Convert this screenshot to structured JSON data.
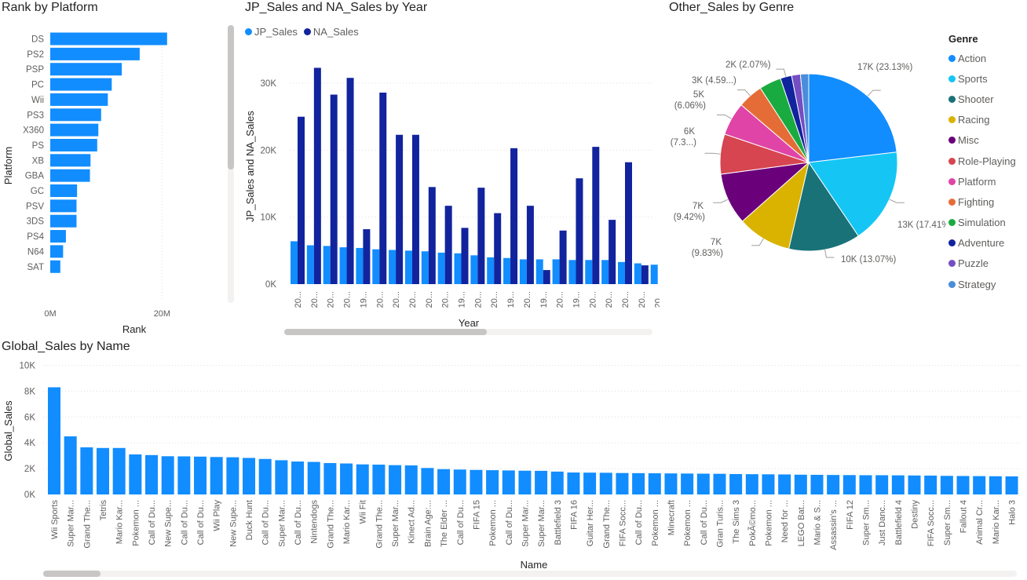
{
  "chart_data": [
    {
      "id": "platform",
      "type": "bar",
      "orientation": "horizontal",
      "title": "Rank by Platform",
      "xlabel": "Rank",
      "ylabel": "Platform",
      "xlim": [
        0,
        25000000
      ],
      "xticks": [
        {
          "v": 0,
          "label": "0M"
        },
        {
          "v": 20000000,
          "label": "20M"
        }
      ],
      "categories": [
        "DS",
        "PS2",
        "PSP",
        "PC",
        "Wii",
        "PS3",
        "X360",
        "PS",
        "XB",
        "GBA",
        "GC",
        "PSV",
        "3DS",
        "PS4",
        "N64",
        "SAT"
      ],
      "values": [
        20900000,
        16000000,
        12800000,
        11000000,
        10300000,
        9100000,
        8600000,
        8400000,
        7200000,
        7100000,
        4800000,
        4700000,
        4700000,
        2800000,
        2300000,
        1800000
      ],
      "color": "#118dff"
    },
    {
      "id": "sales_year",
      "type": "bar",
      "title": "JP_Sales and NA_Sales by Year",
      "xlabel": "Year",
      "ylabel": "JP_Sales and NA_Sales",
      "ylim": [
        0,
        35000
      ],
      "yticks": [
        {
          "v": 0,
          "label": "0K"
        },
        {
          "v": 10000,
          "label": "10K"
        },
        {
          "v": 20000,
          "label": "20K"
        },
        {
          "v": 30000,
          "label": "30K"
        }
      ],
      "categories": [
        "20...",
        "20...",
        "20...",
        "20...",
        "19...",
        "20...",
        "20...",
        "20...",
        "20...",
        "20...",
        "19...",
        "20...",
        "20...",
        "19...",
        "20...",
        "19...",
        "20...",
        "19...",
        "20...",
        "20...",
        "20...",
        "20...",
        "20...",
        "19..."
      ],
      "series": [
        {
          "name": "JP_Sales",
          "color": "#118dff",
          "values": [
            6400,
            5800,
            5700,
            5500,
            5400,
            5200,
            5100,
            5000,
            4900,
            4700,
            4600,
            4300,
            4000,
            3900,
            3700,
            3700,
            3700,
            3600,
            3600,
            3600,
            3300,
            3100,
            2900,
            2900
          ]
        },
        {
          "name": "NA_Sales",
          "color": "#12239e",
          "values": [
            25000,
            32300,
            28300,
            30800,
            8200,
            28600,
            22300,
            22300,
            14500,
            11700,
            8400,
            14400,
            10600,
            20300,
            11700,
            2100,
            8000,
            15800,
            20500,
            9600,
            18200,
            2800,
            0,
            0
          ]
        }
      ]
    },
    {
      "id": "genre",
      "type": "pie",
      "title": "Other_Sales by Genre",
      "legend_title": "Genre",
      "legend_position": "right",
      "slices": [
        {
          "name": "Action",
          "value": 23.13,
          "color": "#118dff",
          "label": "17K (23.13%)"
        },
        {
          "name": "Sports",
          "value": 17.41,
          "color": "#15c6f4",
          "label": "13K (17.41%)"
        },
        {
          "name": "Shooter",
          "value": 13.07,
          "color": "#197278",
          "label": "10K (13.07%)"
        },
        {
          "name": "Racing",
          "value": 9.83,
          "color": "#d9b300",
          "label": "7K (9.83%)"
        },
        {
          "name": "Misc",
          "value": 9.42,
          "color": "#6b007b",
          "label": "7K (9.42%)"
        },
        {
          "name": "Role-Playing",
          "value": 7.3,
          "color": "#d64550",
          "label": "6K (7.3...)"
        },
        {
          "name": "Platform",
          "value": 6.06,
          "color": "#e044a7",
          "label": "5K (6.06%)"
        },
        {
          "name": "Fighting",
          "value": 4.59,
          "color": "#e66c37",
          "label": "3K (4.59...)"
        },
        {
          "name": "Simulation",
          "value": 4.0,
          "color": "#1aab40",
          "label": ""
        },
        {
          "name": "Adventure",
          "value": 2.07,
          "color": "#12239e",
          "label": "2K (2.07%)"
        },
        {
          "name": "Puzzle",
          "value": 1.6,
          "color": "#744ec2",
          "label": ""
        },
        {
          "name": "Strategy",
          "value": 1.5,
          "color": "#4a8ddc",
          "label": ""
        }
      ]
    },
    {
      "id": "global",
      "type": "bar",
      "title": "Global_Sales by Name",
      "xlabel": "Name",
      "ylabel": "Global_Sales",
      "ylim": [
        0,
        10000
      ],
      "yticks": [
        {
          "v": 0,
          "label": "0K"
        },
        {
          "v": 2000,
          "label": "2K"
        },
        {
          "v": 4000,
          "label": "4K"
        },
        {
          "v": 6000,
          "label": "6K"
        },
        {
          "v": 8000,
          "label": "8K"
        },
        {
          "v": 10000,
          "label": "10K"
        }
      ],
      "color": "#118dff",
      "categories": [
        "Wii Sports",
        "Super Mar...",
        "Grand The...",
        "Tetris",
        "Mario Kar...",
        "Pokemon ...",
        "Call of Du...",
        "New Supe...",
        "Call of Du...",
        "Call of Du...",
        "Wii Play",
        "New Supe...",
        "Duck Hunt",
        "Call of Du...",
        "Super Mar...",
        "Call of Du...",
        "Nintendogs",
        "Grand The...",
        "Mario Kar...",
        "Wii Fit",
        "Grand The...",
        "Super Mar...",
        "Kinect Ad...",
        "Brain Age:...",
        "The Elder ...",
        "Call of Du...",
        "FIFA 15",
        "Pokemon ...",
        "Call of Du...",
        "Super Mar...",
        "Super Mar...",
        "Battlefield 3",
        "FIFA 16",
        "Guitar Her...",
        "Grand The...",
        "FIFA Socc...",
        "Call of Du...",
        "Pokemon ...",
        "Minecraft",
        "Pokemon ...",
        "Call of Du...",
        "Gran Turis...",
        "The Sims 3",
        "PokÃ©mo...",
        "Pokemon ...",
        "Need for ...",
        "LEGO Bat...",
        "Mario & S...",
        "Assassin's ...",
        "FIFA 12",
        "Super Sm...",
        "Just Danc...",
        "Battlefield 4",
        "Destiny",
        "FIFA Socc...",
        "Super Sm...",
        "Fallout 4",
        "Animal Cr...",
        "Mario Kar...",
        "Halo 3"
      ],
      "values": [
        8300,
        4500,
        3650,
        3600,
        3600,
        3100,
        3050,
        2960,
        2950,
        2930,
        2900,
        2880,
        2830,
        2750,
        2650,
        2550,
        2520,
        2430,
        2400,
        2330,
        2310,
        2270,
        2250,
        2050,
        1960,
        1930,
        1900,
        1880,
        1860,
        1840,
        1830,
        1770,
        1700,
        1690,
        1680,
        1660,
        1650,
        1640,
        1630,
        1620,
        1610,
        1600,
        1580,
        1570,
        1560,
        1550,
        1530,
        1520,
        1510,
        1500,
        1490,
        1490,
        1480,
        1470,
        1460,
        1440,
        1430,
        1420,
        1410,
        1400
      ]
    }
  ]
}
